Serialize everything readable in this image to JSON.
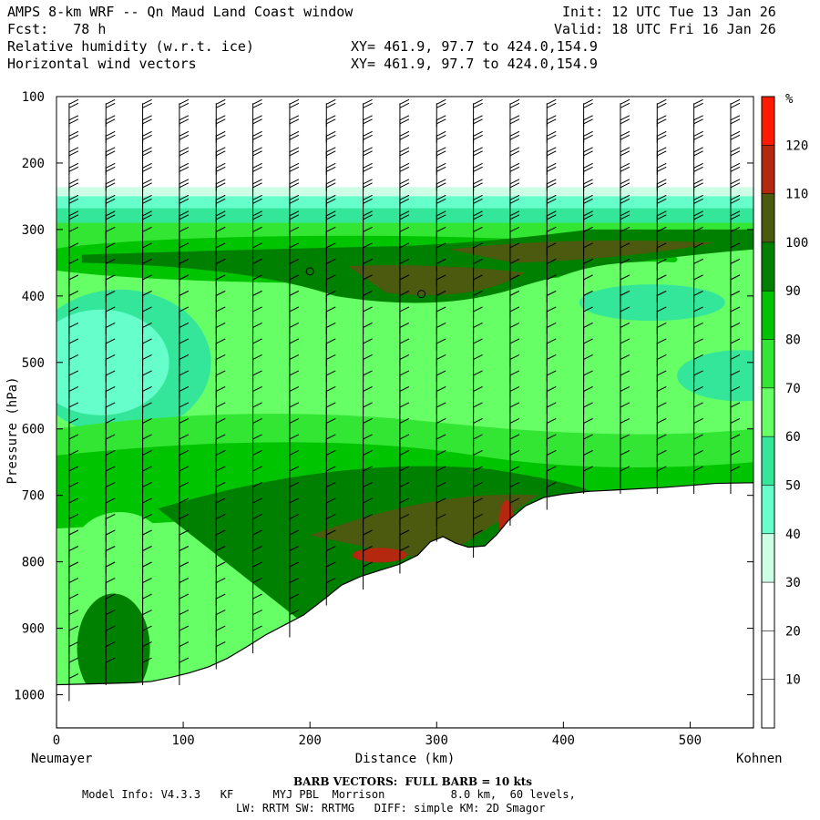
{
  "header": {
    "title": "AMPS 8-km WRF -- Qn Maud Land Coast window",
    "forecast": "Fcst:   78 h",
    "init": "Init: 12 UTC Tue 13 Jan 26",
    "valid": "Valid: 18 UTC Fri 16 Jan 26",
    "field1": "Relative humidity (w.r.t. ice)",
    "field2": "Horizontal wind vectors",
    "xy1": "XY= 461.9, 97.7 to 424.0,154.9",
    "xy2": "XY= 461.9, 97.7 to 424.0,154.9"
  },
  "footer": {
    "barb_note": "BARB VECTORS:  FULL BARB = 10 kts",
    "model_info": "Model Info: V4.3.3   KF      MYJ PBL  Morrison          8.0 km,  60 levels,",
    "physics": "LW: RRTM SW: RRTMG   DIFF: simple KM: 2D Smagor"
  },
  "chart_data": {
    "type": "heatmap",
    "title": "Relative humidity (w.r.t. ice) cross-section with horizontal wind barbs",
    "xlabel": "Distance (km)",
    "ylabel": "Pressure (hPa)",
    "x_start_label": "Neumayer",
    "x_end_label": "Kohnen",
    "xlim": [
      0,
      550
    ],
    "ylim": [
      1050,
      100
    ],
    "x_ticks": [
      0,
      100,
      200,
      300,
      400,
      500
    ],
    "y_ticks": [
      100,
      200,
      300,
      400,
      500,
      600,
      700,
      800,
      900,
      1000
    ],
    "colorbar": {
      "unit": "%",
      "levels": [
        10,
        20,
        30,
        40,
        50,
        60,
        70,
        80,
        90,
        100,
        110,
        120
      ],
      "colors": [
        "#ffffff",
        "#ffffff",
        "#ffffff",
        "#ccffe6",
        "#66ffcc",
        "#33e699",
        "#66ff66",
        "#33e633",
        "#00c400",
        "#008000",
        "#4b5a0f",
        "#b3280f",
        "#ff1a00"
      ]
    },
    "terrain": [
      [
        0,
        985
      ],
      [
        20,
        984
      ],
      [
        40,
        983
      ],
      [
        60,
        982
      ],
      [
        75,
        980
      ],
      [
        90,
        974
      ],
      [
        105,
        967
      ],
      [
        120,
        958
      ],
      [
        135,
        945
      ],
      [
        150,
        928
      ],
      [
        165,
        910
      ],
      [
        180,
        895
      ],
      [
        195,
        880
      ],
      [
        210,
        858
      ],
      [
        225,
        835
      ],
      [
        240,
        822
      ],
      [
        255,
        813
      ],
      [
        270,
        804
      ],
      [
        285,
        790
      ],
      [
        295,
        770
      ],
      [
        305,
        762
      ],
      [
        315,
        772
      ],
      [
        325,
        778
      ],
      [
        338,
        776
      ],
      [
        347,
        760
      ],
      [
        357,
        737
      ],
      [
        370,
        716
      ],
      [
        385,
        703
      ],
      [
        400,
        698
      ],
      [
        420,
        694
      ],
      [
        440,
        692
      ],
      [
        480,
        688
      ],
      [
        520,
        682
      ],
      [
        550,
        681
      ]
    ],
    "rh_regions": [
      {
        "level": ">30",
        "top": 265,
        "note": "moist layer below ~270 hPa"
      },
      {
        "level": "40-50",
        "center": [
          35,
          490
        ],
        "note": "dry pocket west, 430-560 hPa"
      },
      {
        "level": "90-100",
        "center": [
          200,
          345
        ],
        "note": "upper moist band 320-370 hPa"
      },
      {
        "level": "100-110",
        "center": [
          300,
          330
        ],
        "note": "upper max band"
      },
      {
        "level": "110-120",
        "center": [
          270,
          790
        ],
        "note": "near-surface supersaturation"
      },
      {
        "level": "110-120",
        "center": [
          370,
          710
        ],
        "note": "near-surface supersaturation"
      },
      {
        "level": "50-60",
        "center": [
          470,
          400
        ],
        "note": "dry tongue east 380-440 hPa"
      }
    ],
    "circle_markers": [
      [
        200,
        363
      ],
      [
        288,
        397
      ]
    ]
  }
}
